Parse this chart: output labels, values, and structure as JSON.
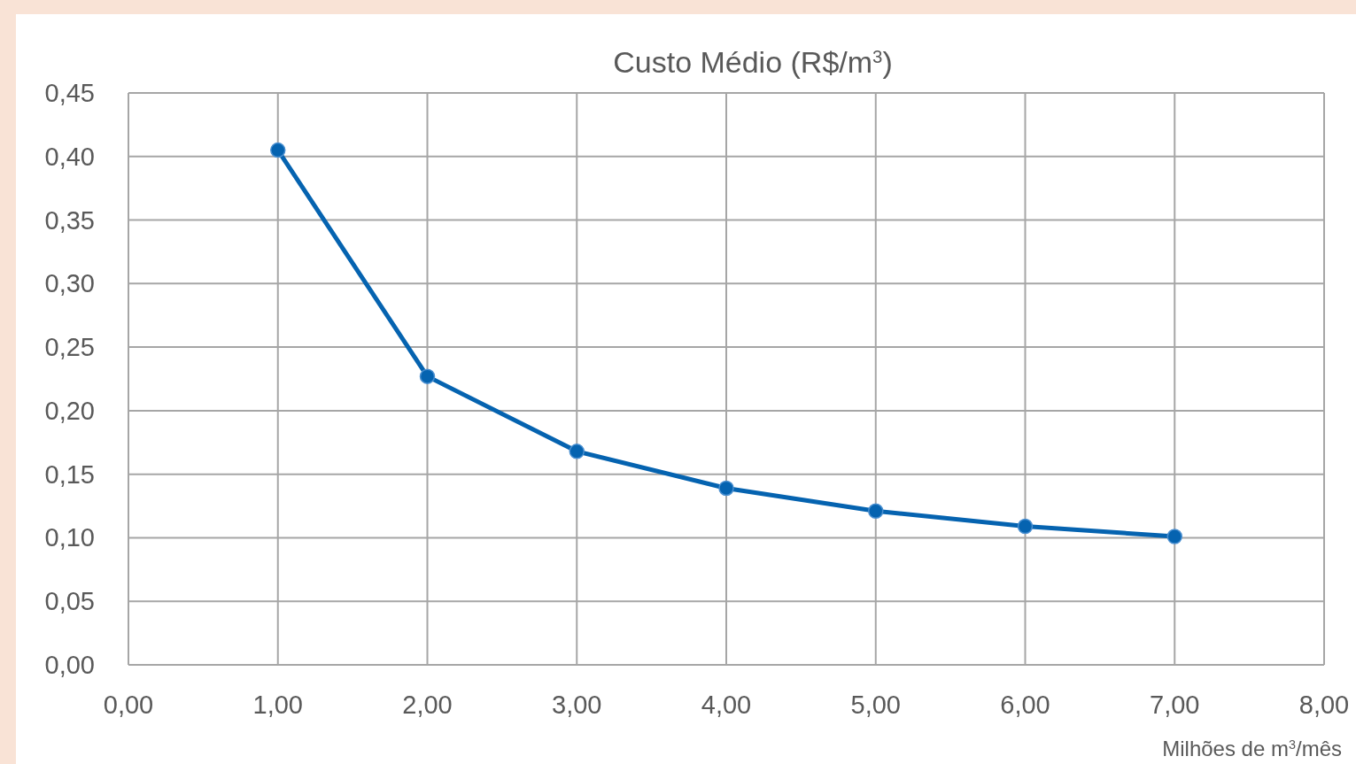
{
  "chart_data": {
    "type": "line",
    "title": "Custo Médio (R$/m$^{3}$)",
    "xlabel": "Milhões de m$^{3}$/mês",
    "x": [
      1,
      2,
      3,
      4,
      5,
      6,
      7
    ],
    "series": [
      {
        "color": "#0563b0",
        "values": [
          0.405,
          0.227,
          0.168,
          0.139,
          0.121,
          0.109,
          0.101
        ]
      }
    ],
    "xlim": [
      0,
      8
    ],
    "ylim": [
      0,
      0.45
    ],
    "xticks": [
      {
        "value": 0,
        "label": "0,00"
      },
      {
        "value": 1,
        "label": "1,00"
      },
      {
        "value": 2,
        "label": "2,00"
      },
      {
        "value": 3,
        "label": "3,00"
      },
      {
        "value": 4,
        "label": "4,00"
      },
      {
        "value": 5,
        "label": "5,00"
      },
      {
        "value": 6,
        "label": "6,00"
      },
      {
        "value": 7,
        "label": "7,00"
      },
      {
        "value": 8,
        "label": "8,00"
      }
    ],
    "yticks": [
      {
        "value": 0,
        "label": "0,00"
      },
      {
        "value": 0.05,
        "label": "0,05"
      },
      {
        "value": 0.1,
        "label": "0,10"
      },
      {
        "value": 0.15,
        "label": "0,15"
      },
      {
        "value": 0.2,
        "label": "0,20"
      },
      {
        "value": 0.25,
        "label": "0,25"
      },
      {
        "value": 0.3,
        "label": "0,30"
      },
      {
        "value": 0.35,
        "label": "0,35"
      },
      {
        "value": 0.4,
        "label": "0,40"
      },
      {
        "value": 0.45,
        "label": "0,45"
      }
    ],
    "grid": true,
    "marker": "circle",
    "line_style": "solid"
  }
}
